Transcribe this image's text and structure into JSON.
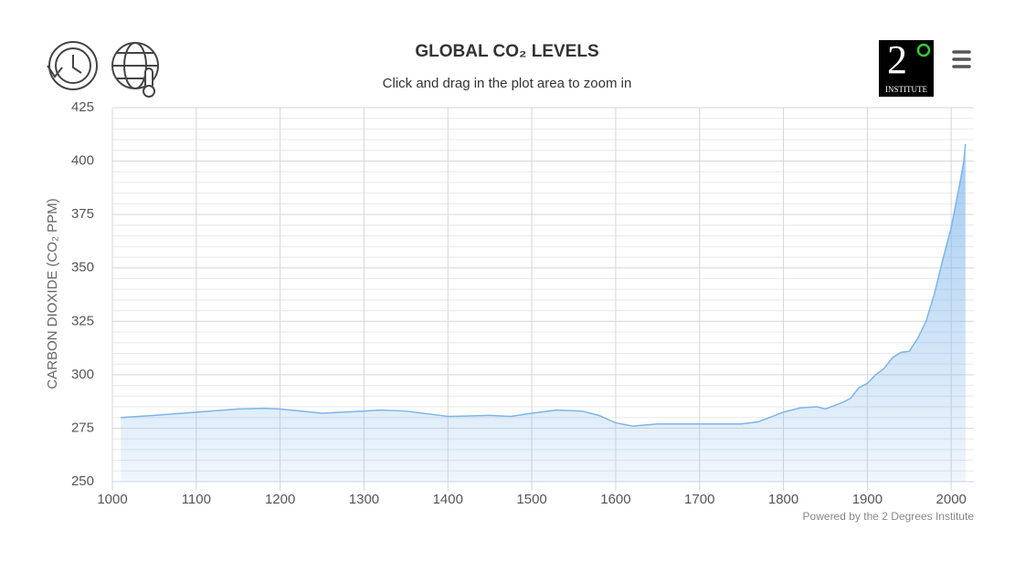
{
  "chart_data": {
    "type": "area",
    "title": "GLOBAL CO₂ LEVELS",
    "subtitle": "Click and drag in the plot area to zoom in",
    "y_label": "CARBON DIOXIDE (CO₂ PPM)",
    "credit": "Powered by the 2 Degrees Institute",
    "logo": {
      "numeral": "2",
      "text": "INSTITUTE"
    },
    "color": "#7cb5ec",
    "grid": true,
    "minor_grid": true,
    "xlim": [
      1000,
      2027
    ],
    "xticks": [
      1000,
      1100,
      1200,
      1300,
      1400,
      1500,
      1600,
      1700,
      1800,
      1900,
      2000
    ],
    "ylim": [
      250,
      425
    ],
    "yticks": [
      250,
      275,
      300,
      325,
      350,
      375,
      400,
      425
    ],
    "x": [
      1010,
      1050,
      1100,
      1150,
      1180,
      1200,
      1250,
      1300,
      1320,
      1350,
      1400,
      1450,
      1475,
      1500,
      1530,
      1560,
      1580,
      1600,
      1620,
      1650,
      1700,
      1750,
      1770,
      1800,
      1820,
      1840,
      1850,
      1870,
      1880,
      1890,
      1900,
      1910,
      1920,
      1930,
      1940,
      1950,
      1960,
      1970,
      1980,
      1990,
      2000,
      2010,
      2015,
      2017
    ],
    "values": [
      280,
      281,
      282.5,
      284,
      284.3,
      284,
      282,
      283,
      283.5,
      283,
      280.5,
      281,
      280.5,
      282,
      283.5,
      283,
      281,
      277.5,
      276,
      277,
      277,
      277,
      278,
      282.5,
      284.5,
      285,
      284,
      287,
      289,
      294,
      296,
      300,
      303,
      308,
      310.5,
      311,
      317,
      325,
      338,
      354,
      369,
      389,
      400,
      408
    ]
  }
}
